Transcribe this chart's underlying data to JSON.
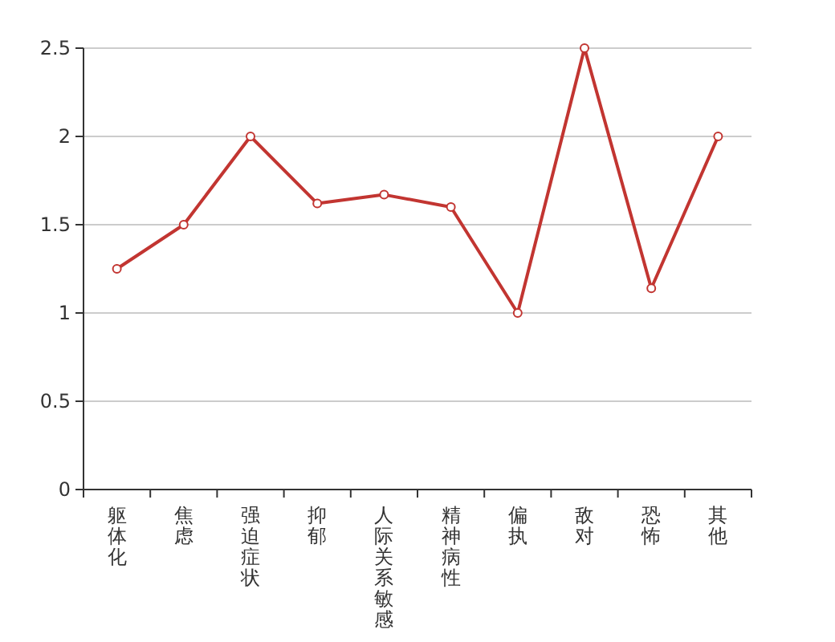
{
  "chart_data": {
    "type": "line",
    "categories": [
      "躯体化",
      "焦虑",
      "强迫症状",
      "抑郁",
      "人际关系敏感",
      "精神病性",
      "偏执",
      "敌对",
      "恐怖",
      "其他"
    ],
    "series": [
      {
        "color": "#c23531",
        "values": [
          1.25,
          1.5,
          2,
          1.62,
          1.67,
          1.6,
          1,
          2.5,
          1.14,
          2
        ]
      }
    ],
    "ylim": [
      0,
      2.5
    ],
    "yticks": [
      0,
      0.5,
      1,
      1.5,
      2,
      2.5
    ],
    "grid": "y",
    "marker": "circle",
    "line_style": "solid"
  }
}
